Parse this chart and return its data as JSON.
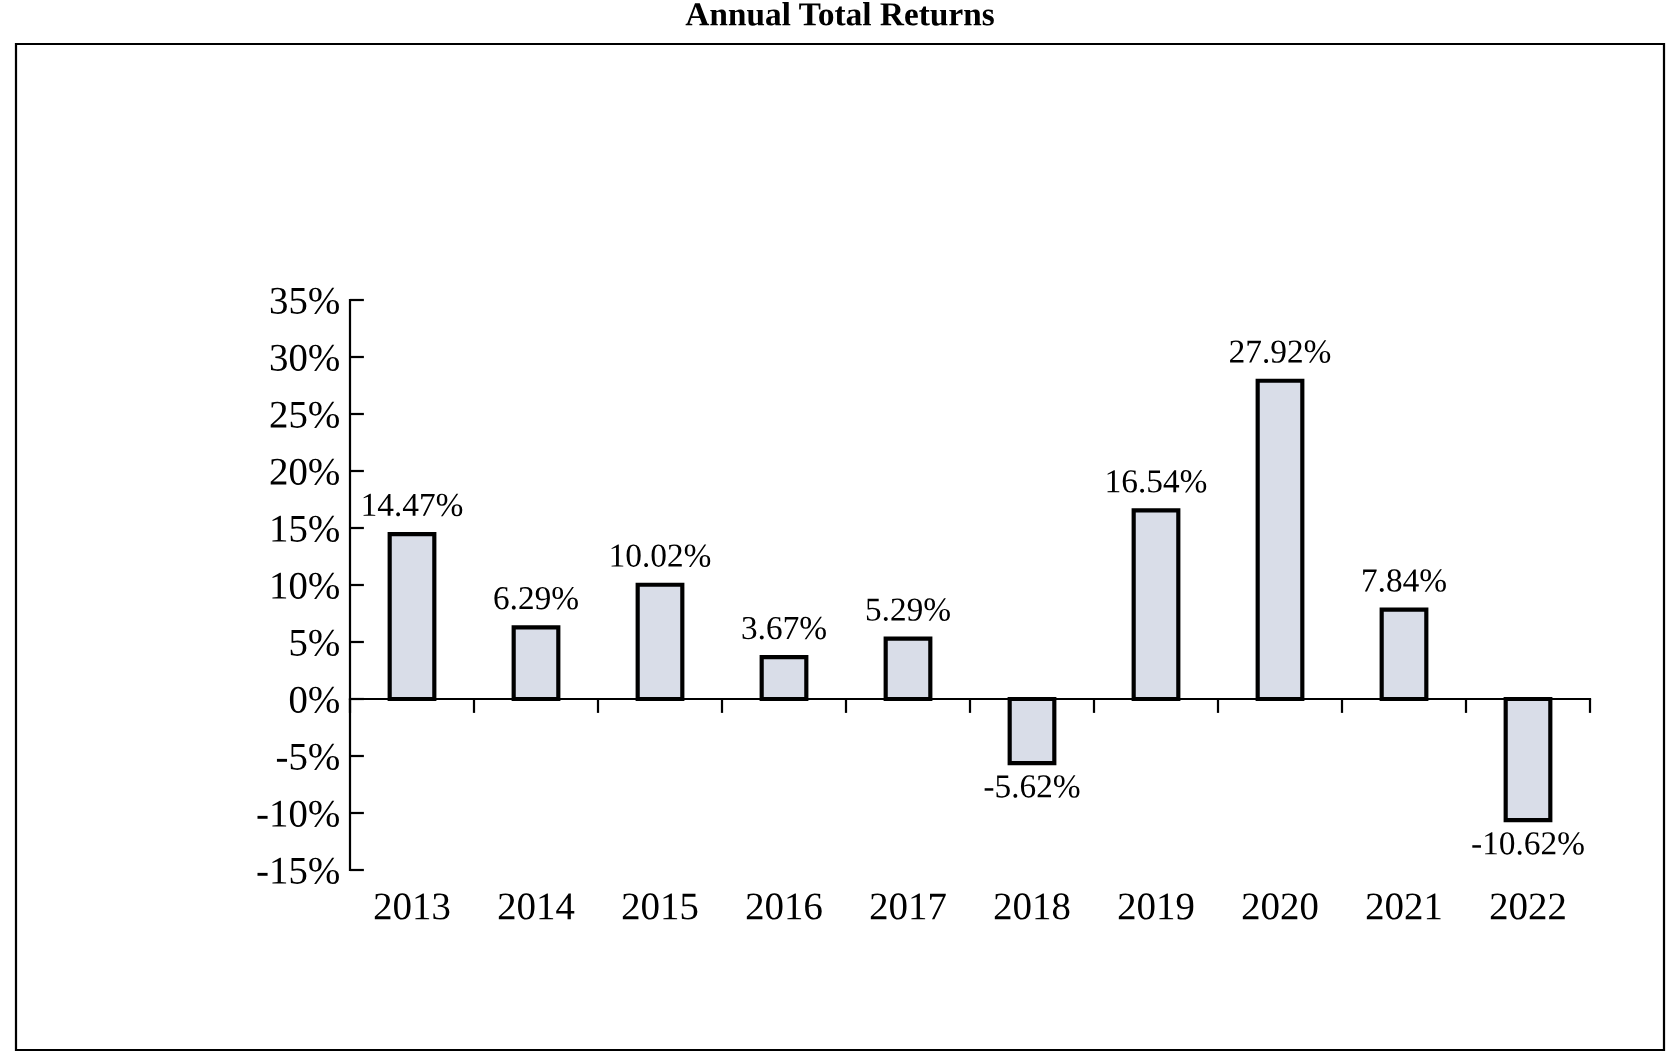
{
  "chart_data": {
    "type": "bar",
    "title": "Annual Total Returns",
    "categories": [
      "2013",
      "2014",
      "2015",
      "2016",
      "2017",
      "2018",
      "2019",
      "2020",
      "2021",
      "2022"
    ],
    "values": [
      14.47,
      6.29,
      10.02,
      3.67,
      5.29,
      -5.62,
      16.54,
      27.92,
      7.84,
      -10.62
    ],
    "value_labels": [
      "14.47%",
      "6.29%",
      "10.02%",
      "3.67%",
      "5.29%",
      "-5.62%",
      "16.54%",
      "27.92%",
      "7.84%",
      "-10.62%"
    ],
    "color": "#d9dde8",
    "ylim": [
      -15,
      35
    ],
    "yticks": [
      {
        "value": -15,
        "label": "-15%"
      },
      {
        "value": -10,
        "label": "-10%"
      },
      {
        "value": -5,
        "label": "-5%"
      },
      {
        "value": 0,
        "label": "0%"
      },
      {
        "value": 5,
        "label": "5%"
      },
      {
        "value": 10,
        "label": "10%"
      },
      {
        "value": 15,
        "label": "15%"
      },
      {
        "value": 20,
        "label": "20%"
      },
      {
        "value": 25,
        "label": "25%"
      },
      {
        "value": 30,
        "label": "30%"
      },
      {
        "value": 35,
        "label": "35%"
      }
    ],
    "legend": false
  }
}
